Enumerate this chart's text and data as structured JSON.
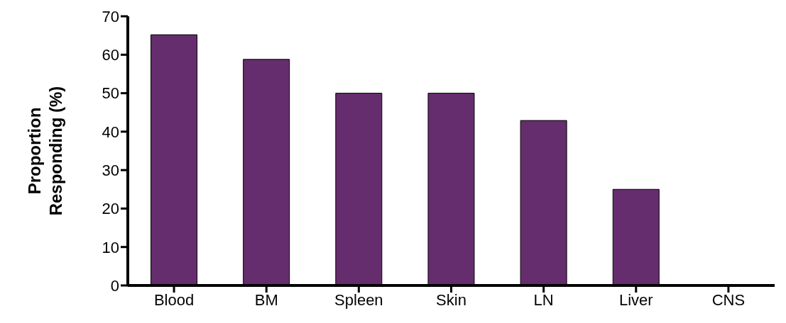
{
  "chart_data": {
    "type": "bar",
    "ylabel": "Proportion Responding (%)",
    "categories": [
      "Blood",
      "BM",
      "Spleen",
      "Skin",
      "LN",
      "Liver",
      "CNS"
    ],
    "values": [
      65.2,
      58.8,
      50,
      50,
      42.9,
      25,
      0
    ],
    "color": "#662d6e",
    "ylim": [
      0,
      70
    ],
    "yticks": [
      0,
      10,
      20,
      30,
      40,
      50,
      60,
      70
    ],
    "grid": false
  }
}
